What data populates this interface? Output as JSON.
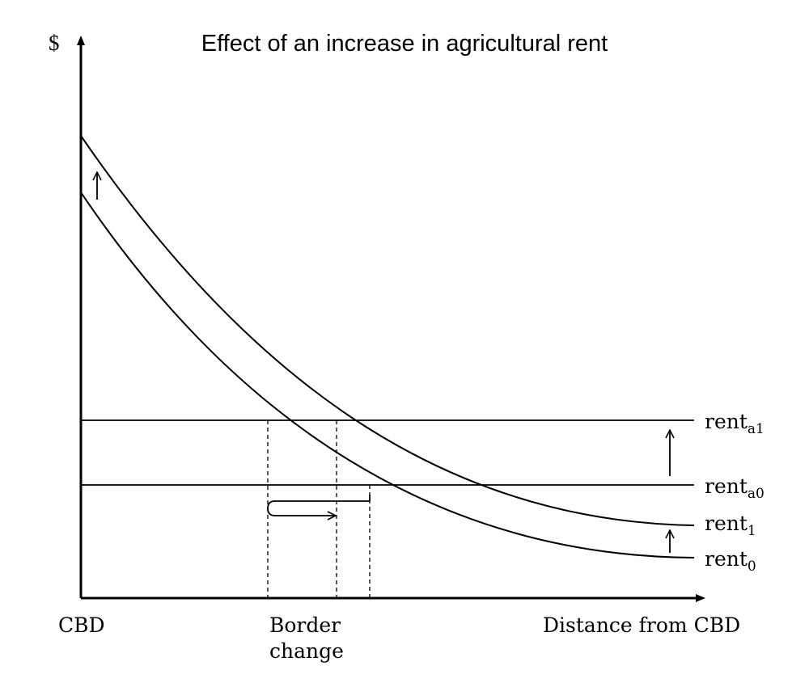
{
  "title": "Effect of an increase in agricultural rent",
  "axes": {
    "y_label": "$",
    "x_origin_label": "CBD",
    "x_label": "Distance from CBD"
  },
  "border_label": {
    "line1": "Border",
    "line2": "change"
  },
  "curves": {
    "rent_a1": {
      "base": "rent",
      "sub": "a1"
    },
    "rent_a0": {
      "base": "rent",
      "sub": "a0"
    },
    "rent_1": {
      "base": "rent",
      "sub": "1"
    },
    "rent_0": {
      "base": "rent",
      "sub": "0"
    }
  }
}
